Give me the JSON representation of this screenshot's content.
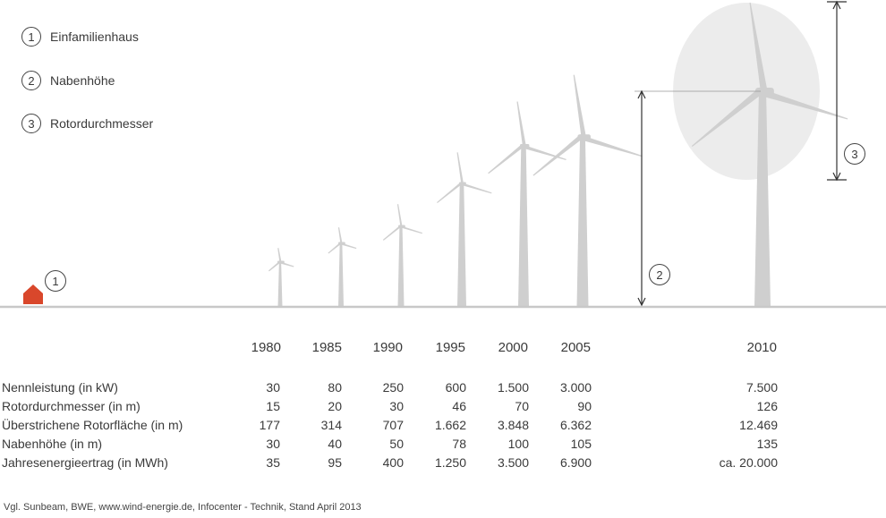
{
  "legend": [
    {
      "num": "1",
      "label": "Einfamilienhaus"
    },
    {
      "num": "2",
      "label": "Nabenhöhe"
    },
    {
      "num": "3",
      "label": "Rotordurchmesser"
    }
  ],
  "markers": {
    "house": "1",
    "hub": "2",
    "rotor": "3"
  },
  "colors": {
    "turbine": "#cfcfcf",
    "house": "#d9472b",
    "ground": "#c8c8c8",
    "rotor_disc": "#ececec"
  },
  "years": [
    "1980",
    "1985",
    "1990",
    "1995",
    "2000",
    "2005",
    "2010"
  ],
  "rows": [
    {
      "label": "Nennleistung (in kW)",
      "values": [
        "30",
        "80",
        "250",
        "600",
        "1.500",
        "3.000",
        "7.500"
      ]
    },
    {
      "label": "Rotordurchmesser (in m)",
      "values": [
        "15",
        "20",
        "30",
        "46",
        "70",
        "90",
        "126"
      ]
    },
    {
      "label": "Überstrichene Rotorfläche (in m)",
      "values": [
        "177",
        "314",
        "707",
        "1.662",
        "3.848",
        "6.362",
        "12.469"
      ]
    },
    {
      "label": "Nabenhöhe (in m)",
      "values": [
        "30",
        "40",
        "50",
        "78",
        "100",
        "105",
        "135"
      ]
    },
    {
      "label": "Jahresenergieertrag (in MWh)",
      "values": [
        "35",
        "95",
        "400",
        "1.250",
        "3.500",
        "6.900",
        "ca. 20.000"
      ]
    }
  ],
  "source": "Vgl. Sunbeam, BWE, www.wind-energie.de, Infocenter - Technik, Stand April 2013"
}
